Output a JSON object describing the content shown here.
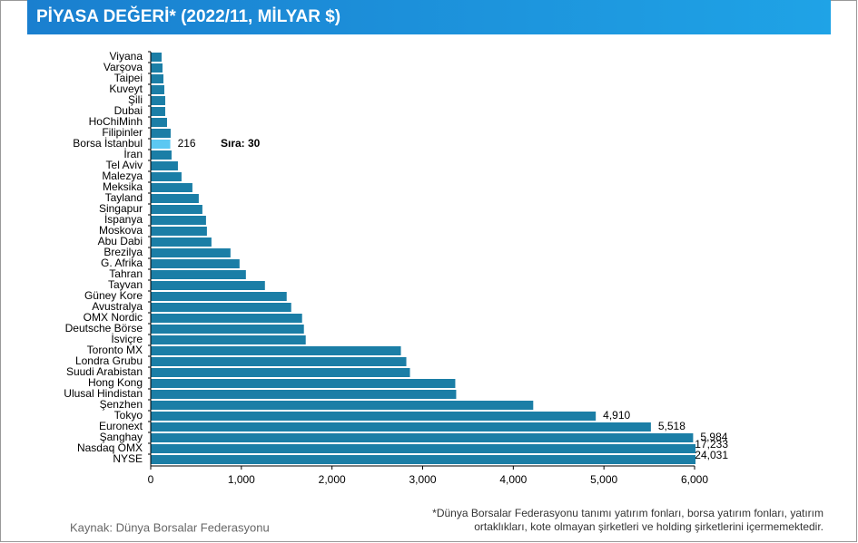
{
  "chart_data": {
    "type": "hbar",
    "title": "PİYASA DEĞERİ* (2022/11, MİLYAR $)",
    "categories": [
      "Viyana",
      "Varşova",
      "Taipei",
      "Kuveyt",
      "Şili",
      "Dubai",
      "HoChiMinh",
      "Filipinler",
      "Borsa İstanbul",
      "İran",
      "Tel Aviv",
      "Malezya",
      "Meksika",
      "Tayland",
      "Singapur",
      "İspanya",
      "Moskova",
      "Abu Dabi",
      "Brezilya",
      "G. Afrika",
      "Tahran",
      "Tayvan",
      "Güney Kore",
      "Avustralya",
      "OMX Nordic",
      "Deutsche Börse",
      "İsviçre",
      "Toronto MX",
      "Londra Grubu",
      "Suudi Arabistan",
      "Hong Kong",
      "Ulusal Hindistan",
      "Şenzhen",
      "Tokyo",
      "Euronext",
      "Şanghay",
      "Nasdaq OMX",
      "NYSE"
    ],
    "values": [
      120,
      130,
      140,
      150,
      160,
      160,
      180,
      220,
      216,
      230,
      300,
      340,
      460,
      530,
      570,
      610,
      620,
      670,
      880,
      980,
      1050,
      1260,
      1500,
      1550,
      1670,
      1690,
      1710,
      2760,
      2820,
      2860,
      3360,
      3370,
      4220,
      4910,
      5518,
      5984,
      17233,
      24031
    ],
    "value_labels": [
      null,
      null,
      null,
      null,
      null,
      null,
      null,
      null,
      "216",
      null,
      null,
      null,
      null,
      null,
      null,
      null,
      null,
      null,
      null,
      null,
      null,
      null,
      null,
      null,
      null,
      null,
      null,
      null,
      null,
      null,
      null,
      null,
      null,
      "4,910",
      "5,518",
      "5,984",
      "17,233",
      "24,031"
    ],
    "color": "#1b7ea6",
    "highlight_category": "Borsa İstanbul",
    "highlight_color": "#5cc8f2",
    "xlim": [
      0,
      6000
    ],
    "xticks": [
      0,
      {
        "value": 1000,
        "label": "1,000"
      },
      {
        "value": 2000,
        "label": "2,000"
      },
      {
        "value": 3000,
        "label": "3,000"
      },
      {
        "value": 4000,
        "label": "4,000"
      },
      {
        "value": 5000,
        "label": "5,000"
      },
      {
        "value": 6000,
        "label": "6,000"
      }
    ],
    "annotation": "Sıra: 30",
    "source": "Kaynak: Dünya Borsalar Federasyonu",
    "footnote": [
      "*Dünya Borsalar Federasyonu tanımı yatırım fonları, borsa yatırım fonları, yatırım",
      "ortaklıkları, kote olmayan şirketleri ve holding şirketlerini içermemektedir."
    ]
  }
}
